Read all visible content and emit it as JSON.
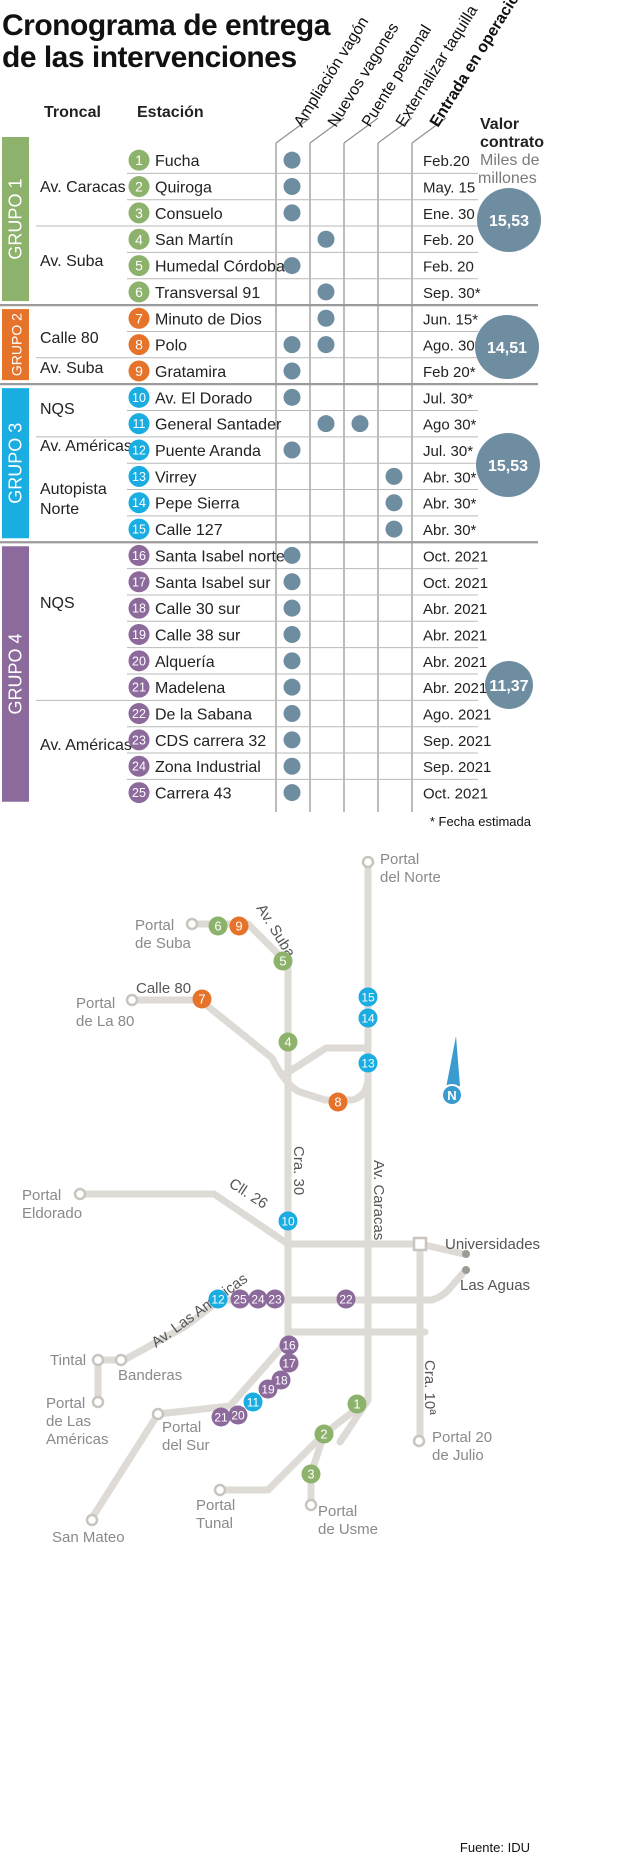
{
  "title": "Cronograma de entrega de las intervenciones",
  "headers": {
    "troncal": "Troncal",
    "estacion": "Estación",
    "valor_1": "Valor",
    "valor_2": "contrato",
    "miles_1": "Miles de",
    "miles_2": "millones"
  },
  "interventions": [
    "Ampliación vagón",
    "Nuevos vagones",
    "Puente peatonal",
    "Externalizar taquilla",
    "Entrada en operación"
  ],
  "group_colors": {
    "1": "#8db26b",
    "2": "#e5732a",
    "3": "#19ade2",
    "4": "#8c6a9c"
  },
  "dot_color": "#6f8da1",
  "groups": [
    {
      "id": 1,
      "label": "GRUPO 1",
      "valor": "15,53"
    },
    {
      "id": 2,
      "label": "GRUPO 2",
      "valor": "14,51"
    },
    {
      "id": 3,
      "label": "GRUPO 3",
      "valor": "15,53"
    },
    {
      "id": 4,
      "label": "GRUPO 4",
      "valor": "11,37"
    }
  ],
  "troncales": [
    {
      "g": 1,
      "lines": [
        "Av. Caracas"
      ]
    },
    {
      "g": 1,
      "lines": [
        "Av. Suba"
      ]
    },
    {
      "g": 2,
      "lines": [
        "Calle 80"
      ]
    },
    {
      "g": 2,
      "lines": [
        "Av. Suba"
      ]
    },
    {
      "g": 3,
      "lines": [
        "NQS"
      ]
    },
    {
      "g": 3,
      "lines": [
        "Av. Américas"
      ]
    },
    {
      "g": 3,
      "lines": [
        "Autopista",
        "Norte"
      ]
    },
    {
      "g": 4,
      "lines": [
        "NQS"
      ]
    },
    {
      "g": 4,
      "lines": [
        "Av. Américas"
      ]
    }
  ],
  "chart_data": {
    "type": "table",
    "columns": [
      "Estación",
      "Ampliación vagón",
      "Nuevos vagones",
      "Puente peatonal",
      "Externalizar taquilla",
      "Entrada en operación"
    ],
    "rows": [
      {
        "n": "1",
        "g": 1,
        "name": "Fucha",
        "marks": [
          1,
          0,
          0,
          0
        ],
        "date": "Feb.20"
      },
      {
        "n": "2",
        "g": 1,
        "name": "Quiroga",
        "marks": [
          1,
          0,
          0,
          0
        ],
        "date": "May. 15"
      },
      {
        "n": "3",
        "g": 1,
        "name": "Consuelo",
        "marks": [
          1,
          0,
          0,
          0
        ],
        "date": "Ene. 30"
      },
      {
        "n": "4",
        "g": 1,
        "name": "San Martín",
        "marks": [
          0,
          1,
          0,
          0
        ],
        "date": "Feb. 20"
      },
      {
        "n": "5",
        "g": 1,
        "name": "Humedal Córdoba",
        "marks": [
          1,
          0,
          0,
          0
        ],
        "date": "Feb. 20"
      },
      {
        "n": "6",
        "g": 1,
        "name": "Transversal 91",
        "marks": [
          0,
          1,
          0,
          0
        ],
        "date": "Sep. 30*"
      },
      {
        "n": "7",
        "g": 2,
        "name": "Minuto de Dios",
        "marks": [
          0,
          1,
          0,
          0
        ],
        "date": "Jun. 15*"
      },
      {
        "n": "8",
        "g": 2,
        "name": "Polo",
        "marks": [
          1,
          1,
          0,
          0
        ],
        "date": "Ago. 30*"
      },
      {
        "n": "9",
        "g": 2,
        "name": "Gratamira",
        "marks": [
          1,
          0,
          0,
          0
        ],
        "date": "Feb 20*"
      },
      {
        "n": "10",
        "g": 3,
        "name": "Av. El Dorado",
        "marks": [
          1,
          0,
          0,
          0
        ],
        "date": "Jul. 30*"
      },
      {
        "n": "11",
        "g": 3,
        "name": "General Santader",
        "marks": [
          0,
          1,
          1,
          0
        ],
        "date": "Ago 30*"
      },
      {
        "n": "12",
        "g": 3,
        "name": "Puente Aranda",
        "marks": [
          1,
          0,
          0,
          0
        ],
        "date": "Jul. 30*"
      },
      {
        "n": "13",
        "g": 3,
        "name": "Virrey",
        "marks": [
          0,
          0,
          0,
          1
        ],
        "date": "Abr. 30*"
      },
      {
        "n": "14",
        "g": 3,
        "name": "Pepe Sierra",
        "marks": [
          0,
          0,
          0,
          1
        ],
        "date": "Abr. 30*"
      },
      {
        "n": "15",
        "g": 3,
        "name": "Calle 127",
        "marks": [
          0,
          0,
          0,
          1
        ],
        "date": "Abr. 30*"
      },
      {
        "n": "16",
        "g": 4,
        "name": "Santa Isabel norte",
        "marks": [
          1,
          0,
          0,
          0
        ],
        "date": "Oct. 2021"
      },
      {
        "n": "17",
        "g": 4,
        "name": "Santa Isabel sur",
        "marks": [
          1,
          0,
          0,
          0
        ],
        "date": "Oct. 2021"
      },
      {
        "n": "18",
        "g": 4,
        "name": "Calle 30 sur",
        "marks": [
          1,
          0,
          0,
          0
        ],
        "date": "Abr. 2021"
      },
      {
        "n": "19",
        "g": 4,
        "name": "Calle 38 sur",
        "marks": [
          1,
          0,
          0,
          0
        ],
        "date": "Abr. 2021"
      },
      {
        "n": "20",
        "g": 4,
        "name": "Alquería",
        "marks": [
          1,
          0,
          0,
          0
        ],
        "date": "Abr. 2021"
      },
      {
        "n": "21",
        "g": 4,
        "name": "Madelena",
        "marks": [
          1,
          0,
          0,
          0
        ],
        "date": "Abr. 2021"
      },
      {
        "n": "22",
        "g": 4,
        "name": "De la Sabana",
        "marks": [
          1,
          0,
          0,
          0
        ],
        "date": "Ago. 2021"
      },
      {
        "n": "23",
        "g": 4,
        "name": "CDS carrera 32",
        "marks": [
          1,
          0,
          0,
          0
        ],
        "date": "Sep. 2021"
      },
      {
        "n": "24",
        "g": 4,
        "name": "Zona Industrial",
        "marks": [
          1,
          0,
          0,
          0
        ],
        "date": "Sep. 2021"
      },
      {
        "n": "25",
        "g": 4,
        "name": "Carrera 43",
        "marks": [
          1,
          0,
          0,
          0
        ],
        "date": "Oct. 2021"
      }
    ]
  },
  "footnote": "* Fecha estimada",
  "map": {
    "portals": [
      {
        "lines": [
          "Portal",
          "del Norte"
        ]
      },
      {
        "lines": [
          "Portal",
          "de Suba"
        ]
      },
      {
        "lines": [
          "Portal",
          "de La 80"
        ]
      },
      {
        "lines": [
          "Portal",
          "Eldorado"
        ]
      },
      {
        "lines": [
          "Tintal"
        ]
      },
      {
        "lines": [
          "Banderas"
        ]
      },
      {
        "lines": [
          "Portal",
          "de Las",
          "Américas"
        ]
      },
      {
        "lines": [
          "Portal",
          "del Sur"
        ]
      },
      {
        "lines": [
          "San Mateo"
        ]
      },
      {
        "lines": [
          "Portal",
          "Tunal"
        ]
      },
      {
        "lines": [
          "Portal",
          "de Usme"
        ]
      },
      {
        "lines": [
          "Portal 20",
          "de Julio"
        ]
      },
      {
        "lines": [
          "Universidades"
        ]
      },
      {
        "lines": [
          "Las Aguas"
        ]
      }
    ],
    "road_labels": [
      "Av. Suba",
      "Calle 80",
      "Cra. 30",
      "Av. Caracas",
      "Cll. 26",
      "Av. Las Américas",
      "Cra. 10ª"
    ],
    "compass": "N",
    "station_markers": [
      "15",
      "14",
      "13",
      "6",
      "9",
      "5",
      "7",
      "4",
      "8",
      "10",
      "12",
      "25",
      "24",
      "23",
      "22",
      "16",
      "17",
      "18",
      "19",
      "11",
      "20",
      "21",
      "1",
      "2",
      "3"
    ]
  },
  "source": "Fuente: IDU"
}
